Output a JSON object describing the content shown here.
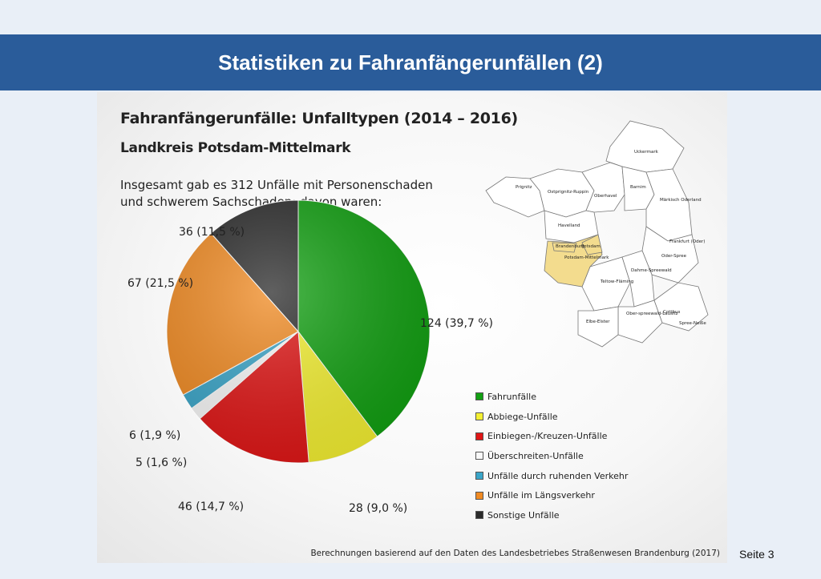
{
  "slide": {
    "title": "Statistiken zu Fahranfängerunfällen (2)",
    "page_label": "Seite 3"
  },
  "panel": {
    "heading": "Fahranfängerunfälle: Unfalltypen (2014 – 2016)",
    "subheading": "Landkreis Potsdam-Mittelmark",
    "description_line1": "Insgesamt gab es 312 Unfälle mit Personenschaden",
    "description_line2": "und schwerem Sachschaden; davon waren:",
    "source": "Berechnungen basierend auf den Daten des Landesbetriebes Straßenwesen Brandenburg (2017)"
  },
  "map": {
    "highlight_color": "#f3dc8e",
    "region_labels": [
      "Prignitz",
      "Ostprignitz-Ruppin",
      "Uckermark",
      "Oberhavel",
      "Barnim",
      "Havelland",
      "Märkisch Oderland",
      "Brandenburg",
      "Potsdam",
      "Potsdam-Mittelmark",
      "Frankfurt (Oder)",
      "Oder-Spree",
      "Teltow-Fläming",
      "Dahme-Spreewald",
      "Ober-spreewald-Lausitz",
      "Elbe-Elster",
      "Cottbus",
      "Spree-Neiße"
    ]
  },
  "chart_data": {
    "type": "pie",
    "total": 312,
    "start_angle_deg": 0,
    "direction": "clockwise",
    "slices": [
      {
        "name": "Fahrunfälle",
        "value": 124,
        "label": "124 (39,7 %)",
        "color": "#12a012"
      },
      {
        "name": "Abbiege-Unfälle",
        "value": 28,
        "label": "28 (9,0 %)",
        "color": "#f4f032"
      },
      {
        "name": "Einbiegen-/Kreuzen-Unfälle",
        "value": 46,
        "label": "46 (14,7 %)",
        "color": "#e01616"
      },
      {
        "name": "Überschreiten-Unfälle",
        "value": 5,
        "label": "5 (1,6 %)",
        "color": "#f8f8f8"
      },
      {
        "name": "Unfälle durch ruhenden Verkehr",
        "value": 6,
        "label": "6 (1,9 %)",
        "color": "#3aa5c8"
      },
      {
        "name": "Unfälle im Längsverkehr",
        "value": 67,
        "label": "67 (21,5 %)",
        "color": "#f08a22"
      },
      {
        "name": "Sonstige Unfälle",
        "value": 36,
        "label": "36 (11,5 %)",
        "color": "#2b2b2b"
      }
    ],
    "legend_position": "bottom-right"
  }
}
